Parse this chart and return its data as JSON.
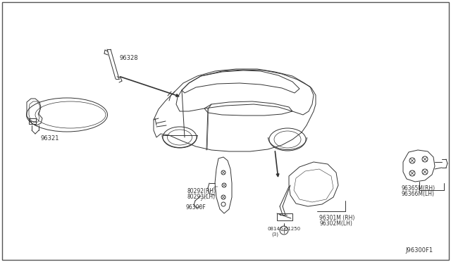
{
  "bg_color": "#f0f0f0",
  "border_color": "#555555",
  "line_color": "#444444",
  "text_color": "#222222",
  "fig_width": 6.4,
  "fig_height": 3.72,
  "dpi": 100,
  "labels": {
    "part_num": "J96300F1",
    "rearview": "96321",
    "bracket": "96328",
    "door_rh": "80292(RH)",
    "door_lh": "80293(LH)",
    "base": "96300F",
    "bolt": "08146-61250",
    "bolt2": "(3)",
    "assy_rh": "96301M (RH)",
    "assy_lh": "96302M(LH)",
    "glass_rh": "96365M(RH)",
    "glass_lh": "96366M(LH)"
  }
}
